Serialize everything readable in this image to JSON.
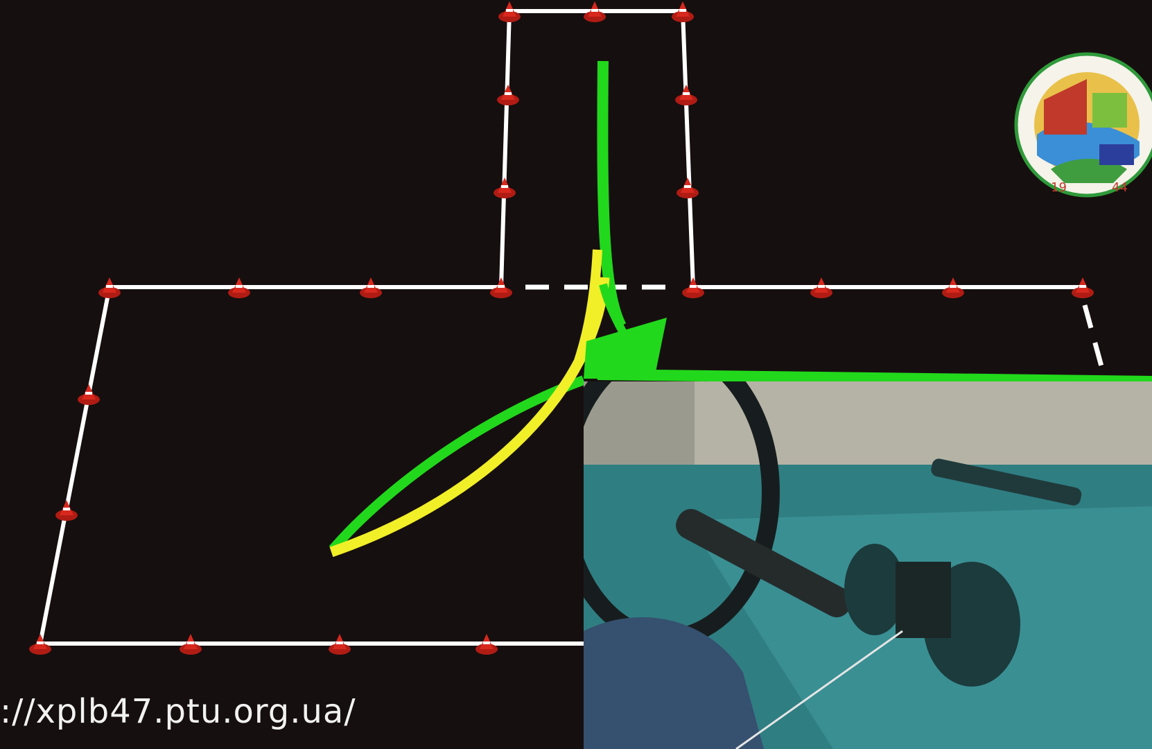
{
  "overlay": {
    "url_text": "://xplb47.ptu.org.ua/"
  },
  "colors": {
    "background": "#160f0f",
    "course_line": "#ffffff",
    "cone": "#d8281e",
    "path_green": "#22d81c",
    "path_yellow": "#f1ef28",
    "dash_white": "#ffffff"
  },
  "icons": [
    "traffic-cone-icon",
    "arrow-head-icon",
    "school-emblem-icon"
  ],
  "logo": {
    "year_left": "19",
    "year_right": "44"
  }
}
